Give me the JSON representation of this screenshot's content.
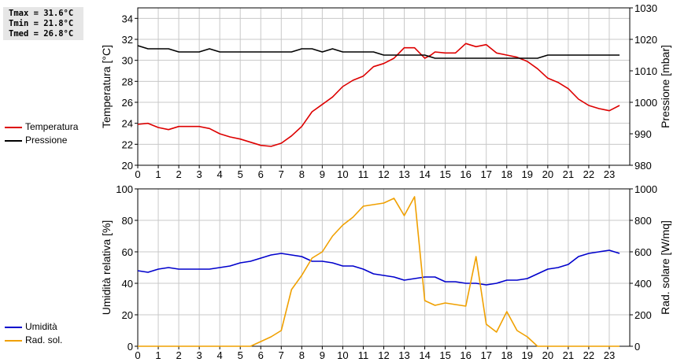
{
  "stats": {
    "tmax": "Tmax = 31.6°C",
    "tmin": "Tmin = 21.8°C",
    "tmed": "Tmed = 26.8°C"
  },
  "chart_data": [
    {
      "type": "line",
      "xlabel": "",
      "ylabel": "Temperatura [°C]",
      "ylabel_right": "Pressione [mbar]",
      "xlim": [
        0,
        24
      ],
      "xticks": [
        "0",
        "1",
        "2",
        "3",
        "4",
        "5",
        "6",
        "7",
        "8",
        "9",
        "10",
        "11",
        "12",
        "13",
        "14",
        "15",
        "16",
        "17",
        "18",
        "19",
        "20",
        "21",
        "22",
        "23"
      ],
      "ylim": [
        20,
        35
      ],
      "yticks": [
        "20",
        "22",
        "24",
        "26",
        "28",
        "30",
        "32",
        "34"
      ],
      "ylim_right": [
        980,
        1030
      ],
      "yticks_right": [
        "980",
        "990",
        "1000",
        "1010",
        "1020",
        "1030"
      ],
      "grid": true,
      "legend_position": "left",
      "series": [
        {
          "name": "Temperatura",
          "color": "#dd0000",
          "axis": "left",
          "x": [
            0,
            0.5,
            1,
            1.5,
            2,
            2.5,
            3,
            3.5,
            4,
            4.5,
            5,
            5.5,
            6,
            6.5,
            7,
            7.5,
            8,
            8.5,
            9,
            9.5,
            10,
            10.5,
            11,
            11.5,
            12,
            12.5,
            13,
            13.5,
            14,
            14.3,
            14.5,
            15,
            15.5,
            16,
            16.5,
            17,
            17.5,
            18,
            18.5,
            19,
            19.5,
            20,
            20.5,
            21,
            21.5,
            22,
            22.5,
            23,
            23.5
          ],
          "y": [
            23.9,
            24.0,
            23.6,
            23.4,
            23.7,
            23.7,
            23.7,
            23.5,
            23.0,
            22.7,
            22.5,
            22.2,
            21.9,
            21.8,
            22.1,
            22.8,
            23.7,
            25.1,
            25.8,
            26.5,
            27.5,
            28.1,
            28.5,
            29.4,
            29.7,
            30.2,
            31.2,
            31.2,
            30.2,
            30.5,
            30.8,
            30.7,
            30.7,
            31.6,
            31.3,
            31.5,
            30.7,
            30.5,
            30.3,
            29.9,
            29.2,
            28.3,
            27.9,
            27.3,
            26.3,
            25.7,
            25.4,
            25.2,
            25.7
          ]
        },
        {
          "name": "Pressione",
          "color": "#000000",
          "axis": "right",
          "x": [
            0,
            0.5,
            1,
            1.5,
            2,
            2.5,
            3,
            3.5,
            4,
            4.5,
            5,
            5.5,
            6,
            6.5,
            7,
            7.5,
            8,
            8.5,
            9,
            9.5,
            10,
            10.5,
            11,
            11.5,
            12,
            12.5,
            13,
            13.5,
            14,
            14.5,
            15,
            15.5,
            16,
            16.5,
            17,
            17.5,
            18,
            18.5,
            19,
            19.5,
            20,
            20.5,
            21,
            21.5,
            22,
            22.5,
            23,
            23.5
          ],
          "y": [
            1018,
            1017,
            1017,
            1017,
            1016,
            1016,
            1016,
            1017,
            1016,
            1016,
            1016,
            1016,
            1016,
            1016,
            1016,
            1016,
            1017,
            1017,
            1016,
            1017,
            1016,
            1016,
            1016,
            1016,
            1015,
            1015,
            1015,
            1015,
            1015,
            1014,
            1014,
            1014,
            1014,
            1014,
            1014,
            1014,
            1014,
            1014,
            1014,
            1014,
            1015,
            1015,
            1015,
            1015,
            1015,
            1015,
            1015,
            1015
          ]
        }
      ]
    },
    {
      "type": "line",
      "xlabel": "",
      "ylabel": "Umidità relativa [%]",
      "ylabel_right": "Rad. solare [W/mq]",
      "xlim": [
        0,
        24
      ],
      "xticks": [
        "0",
        "1",
        "2",
        "3",
        "4",
        "5",
        "6",
        "7",
        "8",
        "9",
        "10",
        "11",
        "12",
        "13",
        "14",
        "15",
        "16",
        "17",
        "18",
        "19",
        "20",
        "21",
        "22",
        "23"
      ],
      "ylim": [
        0,
        100
      ],
      "yticks": [
        "0",
        "20",
        "40",
        "60",
        "80",
        "100"
      ],
      "ylim_right": [
        0,
        1000
      ],
      "yticks_right": [
        "0",
        "200",
        "400",
        "600",
        "800",
        "1000"
      ],
      "grid": true,
      "legend_position": "left",
      "series": [
        {
          "name": "Umidità",
          "color": "#0000cc",
          "axis": "left",
          "x": [
            0,
            0.5,
            1,
            1.5,
            2,
            2.5,
            3,
            3.5,
            4,
            4.5,
            5,
            5.5,
            6,
            6.5,
            7,
            7.5,
            8,
            8.5,
            9,
            9.5,
            10,
            10.5,
            11,
            11.5,
            12,
            12.5,
            13,
            13.5,
            14,
            14.5,
            15,
            15.5,
            16,
            16.5,
            17,
            17.5,
            18,
            18.5,
            19,
            19.5,
            20,
            20.5,
            21,
            21.5,
            22,
            22.5,
            23,
            23.5
          ],
          "y": [
            48,
            47,
            49,
            50,
            49,
            49,
            49,
            49,
            50,
            51,
            53,
            54,
            56,
            58,
            59,
            58,
            57,
            54,
            54,
            53,
            51,
            51,
            49,
            46,
            45,
            44,
            42,
            43,
            44,
            44,
            41,
            41,
            40,
            40,
            39,
            40,
            42,
            42,
            43,
            46,
            49,
            50,
            52,
            57,
            59,
            60,
            61,
            59
          ]
        },
        {
          "name": "Rad. sol.",
          "color": "#f0a000",
          "axis": "right",
          "x": [
            0,
            0.5,
            1,
            1.5,
            2,
            2.5,
            3,
            3.5,
            4,
            4.5,
            5,
            5.5,
            6,
            6.5,
            7,
            7.5,
            8,
            8.5,
            9,
            9.5,
            10,
            10.5,
            11,
            11.5,
            12,
            12.5,
            13,
            13.5,
            14,
            14.5,
            15,
            15.5,
            16,
            16.5,
            17,
            17.5,
            18,
            18.5,
            19,
            19.5,
            20,
            20.5,
            21,
            21.5,
            22,
            22.5,
            23,
            23.5
          ],
          "y": [
            0,
            0,
            0,
            0,
            0,
            0,
            0,
            0,
            0,
            0,
            0,
            0,
            30,
            60,
            100,
            360,
            450,
            560,
            600,
            700,
            770,
            820,
            890,
            900,
            910,
            940,
            830,
            950,
            290,
            260,
            275,
            265,
            255,
            570,
            140,
            90,
            220,
            100,
            60,
            0,
            0,
            0,
            0,
            0,
            0,
            0,
            0,
            0
          ]
        }
      ]
    }
  ]
}
